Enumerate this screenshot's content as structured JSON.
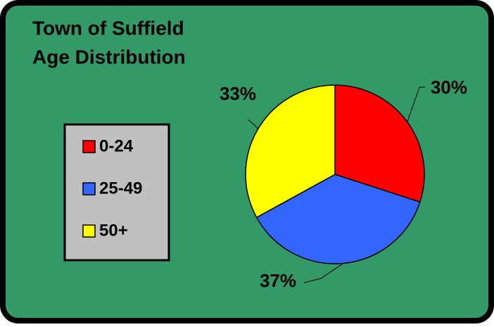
{
  "chart_data": {
    "type": "pie",
    "title": [
      "Town of Suffield",
      "Age Distribution"
    ],
    "categories": [
      "0-24",
      "25-49",
      "50+"
    ],
    "values": [
      30,
      37,
      33
    ],
    "value_labels": [
      "30%",
      "37%",
      "33%"
    ],
    "colors": [
      "#ff0000",
      "#3366ff",
      "#ffff00"
    ],
    "legend": "left"
  }
}
